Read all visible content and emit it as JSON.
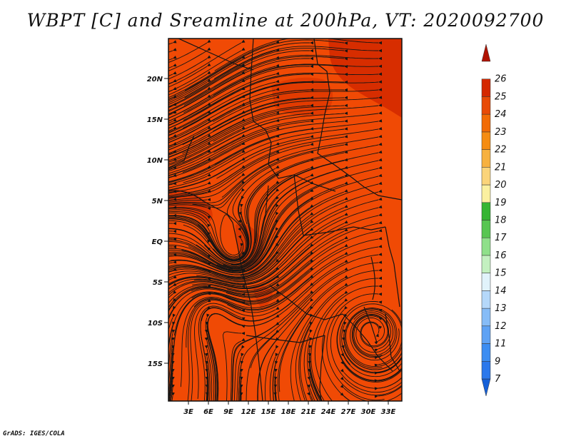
{
  "title": "WBPT [C] and Sreamline at 200hPa, VT: 2020092700",
  "credit": "GrADS: IGES/COLA",
  "lat_labels": [
    "20N",
    "15N",
    "10N",
    "5N",
    "EQ",
    "5S",
    "10S",
    "15S"
  ],
  "lon_labels": [
    "3E",
    "6E",
    "9E",
    "12E",
    "15E",
    "18E",
    "21E",
    "24E",
    "27E",
    "30E",
    "33E"
  ],
  "colorbar": {
    "levels": [
      "7",
      "9",
      "11",
      "12",
      "13",
      "14",
      "15",
      "16",
      "17",
      "18",
      "19",
      "20",
      "21",
      "22",
      "23",
      "24",
      "25",
      "26"
    ],
    "colors": [
      "#1560d8",
      "#2b78ec",
      "#3c8df2",
      "#5ea2f4",
      "#86bcf7",
      "#b5d8fa",
      "#e1f3fb",
      "#c3f0c0",
      "#8fe08a",
      "#58c652",
      "#34b532",
      "#fbf0a0",
      "#fbd47a",
      "#f7b13f",
      "#f58c12",
      "#f26b05",
      "#e84a06",
      "#d42800",
      "#b01200"
    ]
  },
  "chart_data": {
    "type": "heatmap",
    "variable": "WBPT [C]",
    "level": "200hPa",
    "valid_time": "2020092700",
    "overlay": "streamlines",
    "field_range_approx": [
      23,
      25
    ],
    "background_color": "#f04a05"
  }
}
